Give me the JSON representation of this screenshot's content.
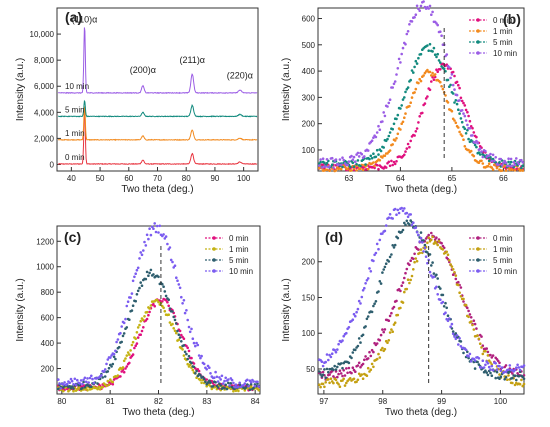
{
  "chart_data": [
    {
      "panel": "(a)",
      "type": "line",
      "xlabel": "Two theta (deg.)",
      "ylabel": "Intensity (a.u.)",
      "xlim": [
        35,
        105
      ],
      "ylim": [
        -500,
        12000
      ],
      "xticks": [
        "40",
        "50",
        "60",
        "70",
        "80",
        "90",
        "100"
      ],
      "yticks": [
        "0",
        "2,000",
        "4,000",
        "6,000",
        "8,000",
        "10,000"
      ],
      "peak_labels": [
        "(110)α",
        "(200)α",
        "(211)α",
        "(220)α"
      ],
      "peaks": [
        {
          "x": 44.6,
          "width": 0.6
        },
        {
          "x": 64.9,
          "width": 1.0
        },
        {
          "x": 82.1,
          "width": 1.1
        },
        {
          "x": 98.7,
          "width": 1.3
        }
      ],
      "series": [
        {
          "name": "0 min",
          "color": "#e8343f",
          "baseline": 0,
          "peak_heights": [
            4400,
            300,
            800,
            150
          ]
        },
        {
          "name": "1 min",
          "color": "#f28a1e",
          "baseline": 1850,
          "peak_heights": [
            2600,
            300,
            750,
            130
          ]
        },
        {
          "name": "5 min",
          "color": "#128a7e",
          "baseline": 3650,
          "peak_heights": [
            1200,
            300,
            850,
            150
          ]
        },
        {
          "name": "10 min",
          "color": "#9b5de5",
          "baseline": 5450,
          "peak_heights": [
            5100,
            550,
            1450,
            210
          ]
        }
      ],
      "grid": false
    },
    {
      "panel": "(b)",
      "type": "scatter",
      "xlabel": "Two theta (deg.)",
      "ylabel": "Intensity (a.u.)",
      "xlim": [
        62.4,
        66.4
      ],
      "ylim": [
        20,
        640
      ],
      "xticks": [
        "63",
        "64",
        "65",
        "66"
      ],
      "yticks": [
        "100",
        "200",
        "300",
        "400",
        "500",
        "600"
      ],
      "dashed_line_x": 64.85,
      "legend_position": "top-right",
      "series": [
        {
          "name": "0 min",
          "color": "#e0107e",
          "center": 64.85,
          "height": 390,
          "width": 0.55,
          "base": 35
        },
        {
          "name": "1 min",
          "color": "#f28a1e",
          "center": 64.55,
          "height": 365,
          "width": 0.6,
          "base": 30
        },
        {
          "name": "5 min",
          "color": "#128a7e",
          "center": 64.55,
          "height": 445,
          "width": 0.65,
          "base": 45
        },
        {
          "name": "10 min",
          "color": "#9b5de5",
          "center": 64.45,
          "height": 600,
          "width": 0.7,
          "base": 50
        }
      ]
    },
    {
      "panel": "(c)",
      "type": "scatter",
      "xlabel": "Two theta (deg.)",
      "ylabel": "Intensity (a.u.)",
      "xlim": [
        79.9,
        84.1
      ],
      "ylim": [
        0,
        1320
      ],
      "xticks": [
        "80",
        "81",
        "82",
        "83",
        "84"
      ],
      "yticks": [
        "200",
        "400",
        "600",
        "800",
        "1000",
        "1200"
      ],
      "dashed_line_x": 82.05,
      "legend_position": "top-right",
      "series": [
        {
          "name": "0 min",
          "color": "#e0107e",
          "center": 82.05,
          "height": 690,
          "width": 0.6,
          "base": 50
        },
        {
          "name": "1 min",
          "color": "#c4b212",
          "center": 81.95,
          "height": 680,
          "width": 0.6,
          "base": 40
        },
        {
          "name": "5 min",
          "color": "#2e5e6e",
          "center": 81.85,
          "height": 890,
          "width": 0.65,
          "base": 60
        },
        {
          "name": "10 min",
          "color": "#7b5cf0",
          "center": 81.95,
          "height": 1230,
          "width": 0.7,
          "base": 80
        }
      ]
    },
    {
      "panel": "(d)",
      "type": "scatter",
      "xlabel": "Two theta (deg.)",
      "ylabel": "Intensity (a.u.)",
      "xlim": [
        96.9,
        100.4
      ],
      "ylim": [
        15,
        250
      ],
      "xticks": [
        "97",
        "98",
        "99",
        "100"
      ],
      "yticks": [
        "50",
        "100",
        "150",
        "200"
      ],
      "dashed_line_x": 98.78,
      "legend_position": "top-right",
      "series": [
        {
          "name": "0 min",
          "color": "#b0207e",
          "center": 98.8,
          "height": 195,
          "width": 0.75,
          "base": 40
        },
        {
          "name": "1 min",
          "color": "#c4a012",
          "center": 98.85,
          "height": 200,
          "width": 0.7,
          "base": 30
        },
        {
          "name": "5 min",
          "color": "#2e5e6e",
          "center": 98.45,
          "height": 212,
          "width": 0.7,
          "base": 40
        },
        {
          "name": "10 min",
          "color": "#7b5cf0",
          "center": 98.3,
          "height": 222,
          "width": 0.75,
          "base": 50
        }
      ]
    }
  ]
}
